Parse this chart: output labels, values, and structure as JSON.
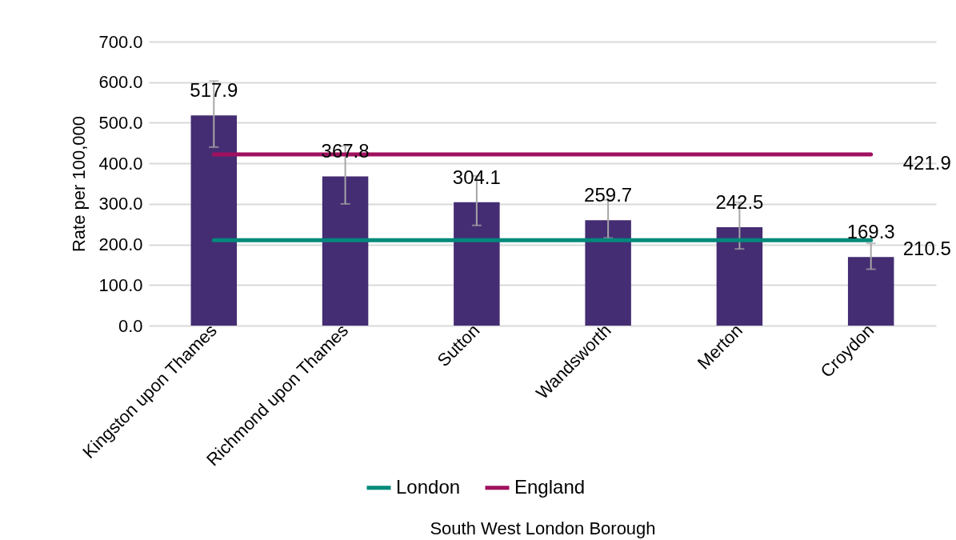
{
  "chart_data": {
    "type": "bar",
    "xlabel": "South West London Borough",
    "ylabel": "Rate per 100,000",
    "categories": [
      "Kingston upon Thames",
      "Richmond upon Thames",
      "Sutton",
      "Wandsworth",
      "Merton",
      "Croydon"
    ],
    "series": [
      {
        "color": "#442d73",
        "values": [
          517.9,
          367.8,
          304.1,
          259.7,
          242.5,
          169.3
        ],
        "value_labels": [
          "517.9",
          "367.8",
          "304.1",
          "259.7",
          "242.5",
          "169.3"
        ],
        "errors": [
          [
            440,
            603
          ],
          [
            300,
            443
          ],
          [
            247,
            369
          ],
          [
            216,
            310
          ],
          [
            189,
            304
          ],
          [
            139,
            203
          ]
        ]
      },
      {
        "type": "line",
        "name": "London",
        "color": "#00897b",
        "values": [
          210.5,
          210.5,
          210.5,
          210.5,
          210.5,
          210.5
        ],
        "value_labels": [
          null,
          null,
          null,
          null,
          null,
          "210.5"
        ]
      },
      {
        "type": "line",
        "name": "England",
        "color": "#a0105f",
        "values": [
          421.9,
          421.9,
          421.9,
          421.9,
          421.9,
          421.9
        ],
        "value_labels": [
          null,
          null,
          null,
          null,
          null,
          "421.9"
        ]
      }
    ],
    "ylim": [
      0,
      700
    ],
    "yticks": [
      {
        "value": 0,
        "label": "0.0"
      },
      {
        "value": 100,
        "label": "100.0"
      },
      {
        "value": 200,
        "label": "200.0"
      },
      {
        "value": 300,
        "label": "300.0"
      },
      {
        "value": 400,
        "label": "400.0"
      },
      {
        "value": 500,
        "label": "500.0"
      },
      {
        "value": 600,
        "label": "600.0"
      },
      {
        "value": 700,
        "label": "700.0"
      }
    ],
    "grid": "y",
    "legend": "bottom"
  }
}
